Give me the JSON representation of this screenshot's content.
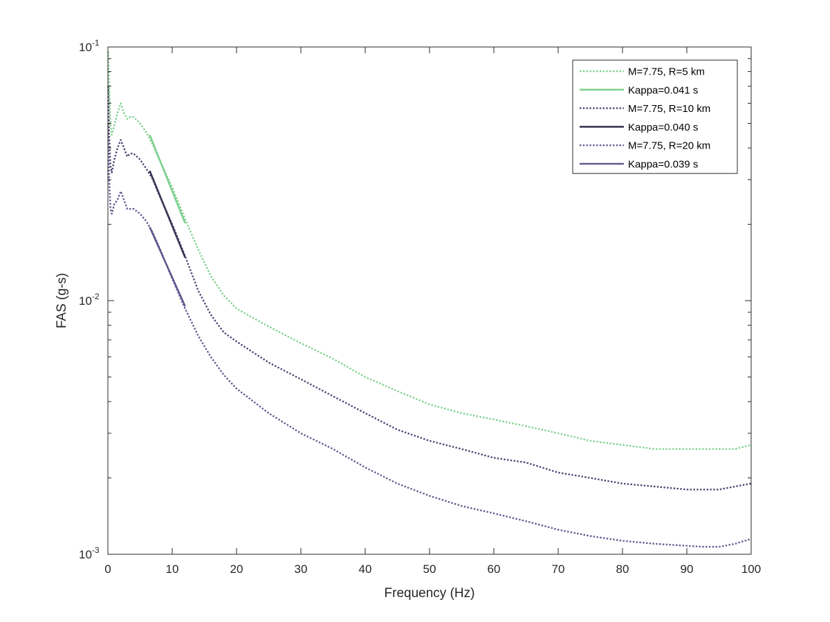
{
  "chart_data": {
    "type": "line",
    "xlabel": "Frequency (Hz)",
    "ylabel": "FAS (g-s)",
    "xlim": [
      0,
      100
    ],
    "ylim": [
      0.001,
      0.1
    ],
    "y_scale": "log",
    "x_ticks": [
      "0",
      "10",
      "20",
      "30",
      "40",
      "50",
      "60",
      "70",
      "80",
      "90",
      "100"
    ],
    "y_ticks": [
      {
        "base": "10",
        "exp": "-3"
      },
      {
        "base": "10",
        "exp": "-2"
      },
      {
        "base": "10",
        "exp": "-1"
      }
    ],
    "grid": false,
    "legend_position": "top-right",
    "series": [
      {
        "name": "M=7.75, R=5 km",
        "style": "dotted",
        "color": "#7fd18f",
        "x": [
          0.05,
          0.2,
          0.4,
          0.6,
          1.0,
          1.5,
          2.0,
          2.5,
          3.0,
          3.5,
          4.0,
          5.0,
          6.0,
          7.0,
          8.0,
          10.0,
          12.0,
          14.0,
          16.0,
          18.0,
          20.0,
          25.0,
          30.0,
          35.0,
          40.0,
          45.0,
          50.0,
          55.0,
          60.0,
          65.0,
          70.0,
          75.0,
          80.0,
          85.0,
          90.0,
          92.5,
          95.0,
          97.5,
          100.0
        ],
        "y": [
          0.096,
          0.07,
          0.05,
          0.045,
          0.049,
          0.055,
          0.06,
          0.055,
          0.052,
          0.053,
          0.053,
          0.05,
          0.046,
          0.041,
          0.036,
          0.028,
          0.021,
          0.016,
          0.0125,
          0.0105,
          0.0093,
          0.0079,
          0.0068,
          0.0059,
          0.005,
          0.0044,
          0.0039,
          0.0036,
          0.0034,
          0.0032,
          0.003,
          0.0028,
          0.0027,
          0.0026,
          0.0026,
          0.0026,
          0.0026,
          0.0026,
          0.0027
        ]
      },
      {
        "name": "Kappa=0.041 s",
        "style": "solid",
        "color": "#7fd18f",
        "x": [
          6.5,
          12.0
        ],
        "y": [
          0.045,
          0.0202
        ]
      },
      {
        "name": "M=7.75, R=10 km",
        "style": "dotted",
        "color": "#4a4572",
        "x": [
          0.05,
          0.2,
          0.4,
          0.6,
          1.0,
          1.5,
          2.0,
          2.5,
          3.0,
          3.5,
          4.0,
          5.0,
          6.0,
          7.0,
          8.0,
          10.0,
          12.0,
          14.0,
          16.0,
          18.0,
          20.0,
          25.0,
          30.0,
          35.0,
          40.0,
          45.0,
          50.0,
          55.0,
          60.0,
          65.0,
          70.0,
          75.0,
          80.0,
          85.0,
          90.0,
          92.5,
          95.0,
          97.5,
          100.0
        ],
        "y": [
          0.07,
          0.045,
          0.034,
          0.032,
          0.036,
          0.04,
          0.043,
          0.04,
          0.037,
          0.038,
          0.038,
          0.036,
          0.033,
          0.03,
          0.026,
          0.02,
          0.015,
          0.011,
          0.0088,
          0.0075,
          0.0069,
          0.0057,
          0.0049,
          0.0042,
          0.0036,
          0.0031,
          0.0028,
          0.0026,
          0.0024,
          0.0023,
          0.0021,
          0.002,
          0.0019,
          0.00185,
          0.0018,
          0.0018,
          0.0018,
          0.00185,
          0.0019
        ]
      },
      {
        "name": "Kappa=0.040 s",
        "style": "solid",
        "color": "#3a3555",
        "x": [
          6.5,
          12.0
        ],
        "y": [
          0.0325,
          0.0148
        ]
      },
      {
        "name": "M=7.75, R=20 km",
        "style": "dotted",
        "color": "#5e5a8f",
        "x": [
          0.05,
          0.2,
          0.4,
          0.6,
          1.0,
          1.5,
          2.0,
          2.5,
          3.0,
          3.5,
          4.0,
          5.0,
          6.0,
          7.0,
          8.0,
          10.0,
          12.0,
          14.0,
          16.0,
          18.0,
          20.0,
          25.0,
          30.0,
          35.0,
          40.0,
          45.0,
          50.0,
          55.0,
          60.0,
          65.0,
          70.0,
          75.0,
          80.0,
          85.0,
          90.0,
          92.5,
          95.0,
          97.5,
          100.0
        ],
        "y": [
          0.05,
          0.03,
          0.023,
          0.022,
          0.024,
          0.025,
          0.027,
          0.025,
          0.023,
          0.023,
          0.023,
          0.022,
          0.0205,
          0.0185,
          0.0162,
          0.0122,
          0.0093,
          0.0073,
          0.006,
          0.0051,
          0.0045,
          0.0036,
          0.003,
          0.0026,
          0.0022,
          0.0019,
          0.0017,
          0.00155,
          0.00145,
          0.00135,
          0.00125,
          0.00118,
          0.00113,
          0.0011,
          0.00108,
          0.00107,
          0.00107,
          0.0011,
          0.00115
        ]
      },
      {
        "name": "Kappa=0.039 s",
        "style": "solid",
        "color": "#5e5a8f",
        "x": [
          6.5,
          12.0
        ],
        "y": [
          0.0195,
          0.0095
        ]
      }
    ]
  }
}
